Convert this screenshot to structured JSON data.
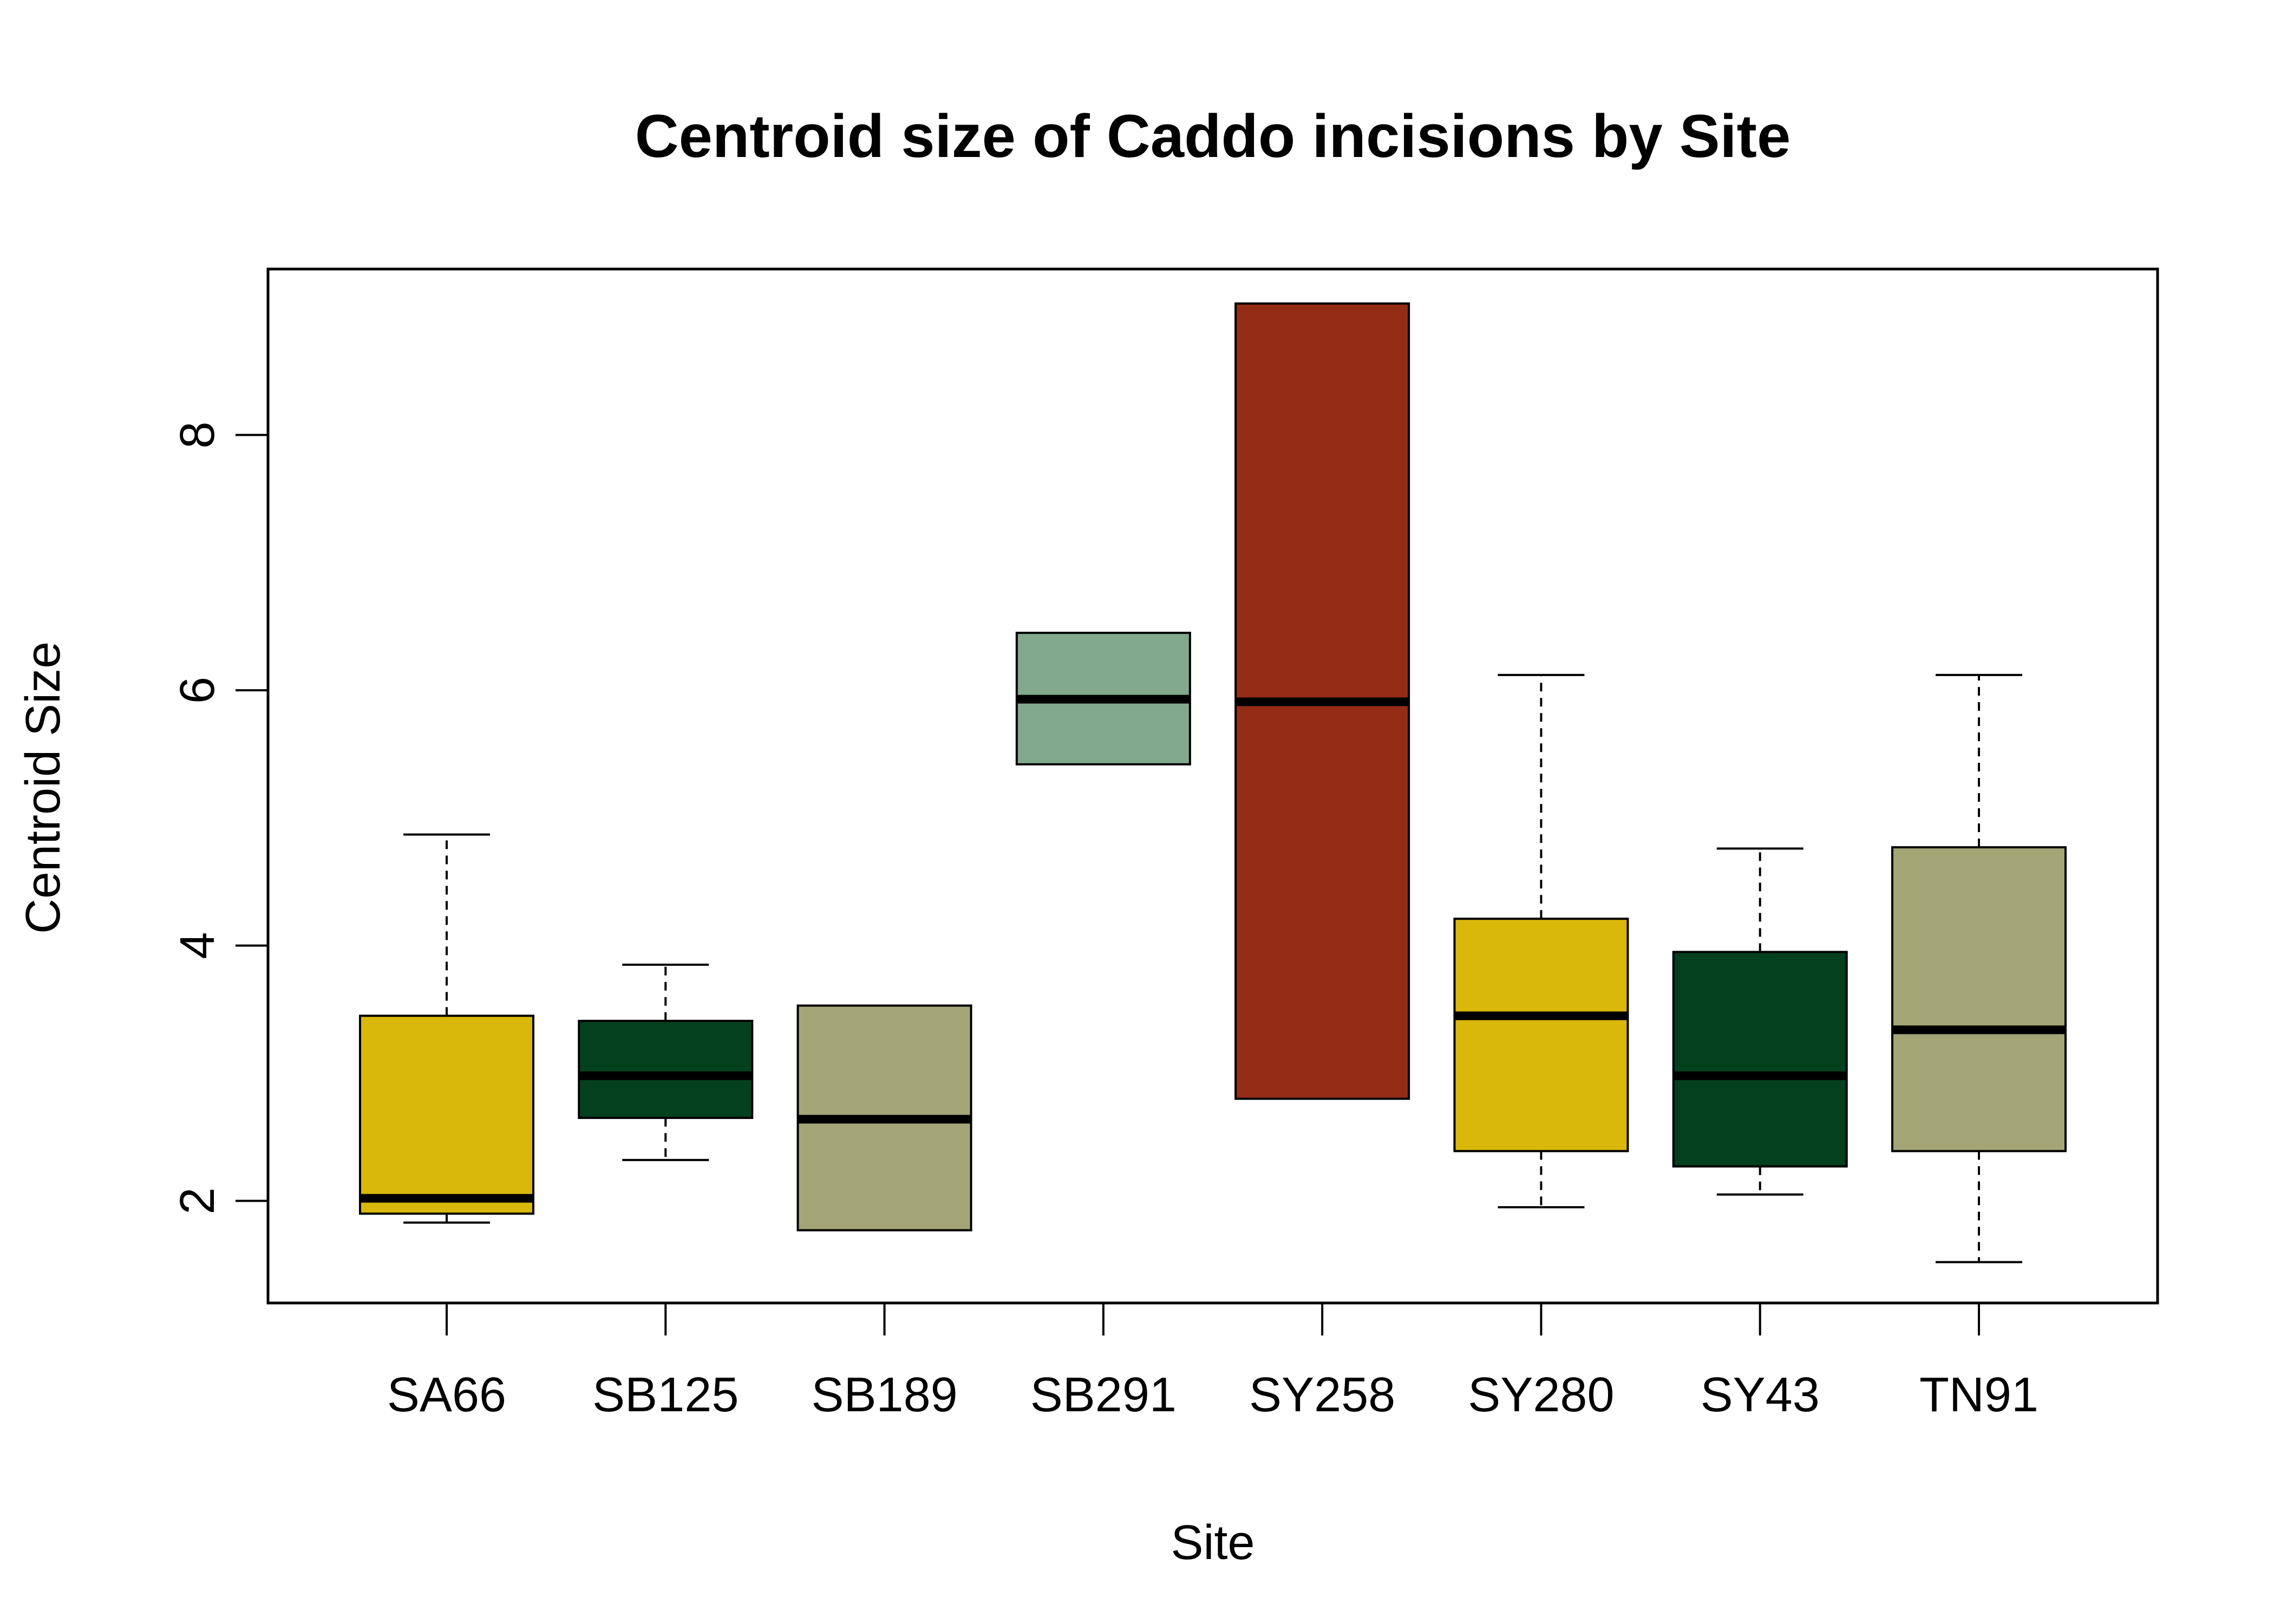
{
  "chart_data": {
    "type": "box",
    "title": "Centroid size of Caddo incisions by Site",
    "xlabel": "Site",
    "ylabel": "Centroid Size",
    "ylim": [
      1.2,
      9.3
    ],
    "y_ticks": [
      2,
      4,
      6,
      8
    ],
    "grid": false,
    "legend": "none",
    "categories": [
      "SA66",
      "SB125",
      "SB189",
      "SB291",
      "SY258",
      "SY280",
      "SY43",
      "TN91"
    ],
    "boxes": [
      {
        "category": "SA66",
        "whisker_low": 1.83,
        "q1": 1.9,
        "median": 2.02,
        "q3": 3.45,
        "whisker_high": 4.87,
        "color": "#D9B70B"
      },
      {
        "category": "SB125",
        "whisker_low": 2.32,
        "q1": 2.65,
        "median": 2.98,
        "q3": 3.41,
        "whisker_high": 3.85,
        "color": "#03401E"
      },
      {
        "category": "SB189",
        "whisker_low": 1.77,
        "q1": 1.77,
        "median": 2.64,
        "q3": 3.53,
        "whisker_high": 3.53,
        "color": "#A3A577"
      },
      {
        "category": "SB291",
        "whisker_low": 5.42,
        "q1": 5.42,
        "median": 5.93,
        "q3": 6.45,
        "whisker_high": 6.45,
        "color": "#82A98C"
      },
      {
        "category": "SY258",
        "whisker_low": 2.8,
        "q1": 2.8,
        "median": 5.91,
        "q3": 9.03,
        "whisker_high": 9.03,
        "color": "#952C16"
      },
      {
        "category": "SY280",
        "whisker_low": 1.95,
        "q1": 2.39,
        "median": 3.45,
        "q3": 4.21,
        "whisker_high": 6.12,
        "color": "#D9B70B"
      },
      {
        "category": "SY43",
        "whisker_low": 2.05,
        "q1": 2.27,
        "median": 2.98,
        "q3": 3.95,
        "whisker_high": 4.76,
        "color": "#03401E"
      },
      {
        "category": "TN91",
        "whisker_low": 1.52,
        "q1": 2.39,
        "median": 3.34,
        "q3": 4.77,
        "whisker_high": 6.12,
        "color": "#A3A577"
      }
    ]
  }
}
